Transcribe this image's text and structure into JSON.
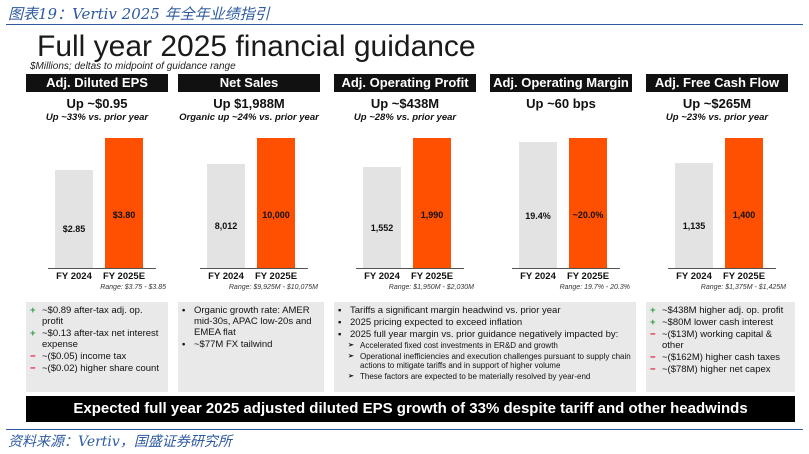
{
  "header": "图表19：Vertiv 2025 年全年业绩指引",
  "title": "Full year 2025 financial guidance",
  "subtitle": "$Millions; deltas to midpoint of guidance range",
  "colors": {
    "prior": "#e3e3e3",
    "guide": "#fe5000",
    "plus": "#2e9e44",
    "minus": "#e4002b",
    "accent": "#2e5aa0"
  },
  "chart_data": [
    {
      "type": "bar",
      "title": "Adj. Diluted EPS",
      "headline": "Up ~$0.95",
      "note": "Up ~33% vs. prior year",
      "categories": [
        "FY 2024",
        "FY 2025E"
      ],
      "values": [
        2.85,
        3.8
      ],
      "labels": [
        "$2.85",
        "$3.80"
      ],
      "range": "Range: $3.75 - $3.85"
    },
    {
      "type": "bar",
      "title": "Net Sales",
      "headline": "Up $1,988M",
      "note": "Organic up ~24% vs. prior year",
      "categories": [
        "FY 2024",
        "FY 2025E"
      ],
      "values": [
        8012,
        10000
      ],
      "labels": [
        "8,012",
        "10,000"
      ],
      "range": "Range: $9,925M - $10,075M"
    },
    {
      "type": "bar",
      "title": "Adj. Operating Profit",
      "headline": "Up ~$438M",
      "note": "Up ~28% vs. prior year",
      "categories": [
        "FY 2024",
        "FY 2025E"
      ],
      "values": [
        1552,
        1990
      ],
      "labels": [
        "1,552",
        "1,990"
      ],
      "range": "Range: $1,950M - $2,030M"
    },
    {
      "type": "bar",
      "title": "Adj. Operating Margin",
      "headline": "Up ~60 bps",
      "note": "",
      "categories": [
        "FY 2024",
        "FY 2025E"
      ],
      "values": [
        19.4,
        20.0
      ],
      "labels": [
        "19.4%",
        "~20.0%"
      ],
      "range": "Range: 19.7% - 20.3%"
    },
    {
      "type": "bar",
      "title": "Adj. Free Cash Flow",
      "headline": "Up ~$265M",
      "note": "Up ~23% vs. prior year",
      "categories": [
        "FY 2024",
        "FY 2025E"
      ],
      "values": [
        1135,
        1400
      ],
      "labels": [
        "1,135",
        "1,400"
      ],
      "range": "Range: $1,375M - $1,425M"
    }
  ],
  "bullets": {
    "eps": [
      {
        "mark": "+",
        "kind": "plus",
        "text": "~$0.89 after-tax adj. op. profit"
      },
      {
        "mark": "+",
        "kind": "plus",
        "text": "~$0.13 after-tax net interest expense"
      },
      {
        "mark": "−",
        "kind": "minus",
        "text": "~($0.05) income tax"
      },
      {
        "mark": "−",
        "kind": "minus",
        "text": "~($0.02) higher share count"
      }
    ],
    "sales": [
      {
        "mark": "•",
        "kind": "dot",
        "text": "Organic growth rate: AMER mid-30s, APAC low-20s and EMEA flat"
      },
      {
        "mark": "•",
        "kind": "dot",
        "text": "~$77M FX tailwind"
      }
    ],
    "profit": [
      {
        "mark": "▪",
        "kind": "dot",
        "text": "Tariffs a significant margin headwind vs. prior year"
      },
      {
        "mark": "▪",
        "kind": "dot",
        "text": "2025 pricing expected to exceed inflation"
      },
      {
        "mark": "▪",
        "kind": "dot",
        "text": "2025 full year margin vs. prior guidance negatively impacted by:"
      },
      {
        "mark": "➢",
        "kind": "sub",
        "text": "Accelerated fixed cost investments in ER&D and growth"
      },
      {
        "mark": "➢",
        "kind": "sub",
        "text": "Operational inefficiencies and execution challenges pursuant to supply chain actions to mitigate tariffs and in support of higher volume"
      },
      {
        "mark": "➢",
        "kind": "sub",
        "text": "These factors are expected to be materially resolved by year-end"
      }
    ],
    "fcf": [
      {
        "mark": "+",
        "kind": "plus",
        "text": "~$438M higher adj. op. profit"
      },
      {
        "mark": "+",
        "kind": "plus",
        "text": "~$80M lower cash interest"
      },
      {
        "mark": "−",
        "kind": "minus",
        "text": "~($13M) working capital & other"
      },
      {
        "mark": "−",
        "kind": "minus",
        "text": "~($162M) higher cash taxes"
      },
      {
        "mark": "−",
        "kind": "minus",
        "text": "~($78M) higher net capex"
      }
    ]
  },
  "banner": "Expected full year 2025 adjusted diluted EPS growth of 33% despite tariff and other headwinds",
  "source": "资料来源：Vertiv，国盛证券研究所"
}
